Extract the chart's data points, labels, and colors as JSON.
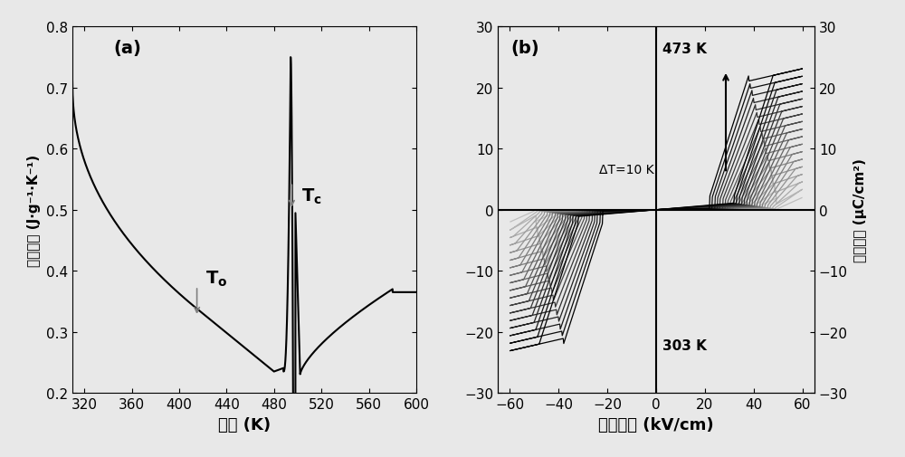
{
  "panel_a": {
    "title": "(a)",
    "xlabel": "温度 (K)",
    "ylabel": "比热系数 (J·g⁻¹·K⁻¹)",
    "xlim": [
      310,
      600
    ],
    "ylim": [
      0.2,
      0.8
    ],
    "xticks": [
      320,
      360,
      400,
      440,
      480,
      520,
      560,
      600
    ],
    "yticks": [
      0.2,
      0.3,
      0.4,
      0.5,
      0.6,
      0.7,
      0.8
    ],
    "To_x": 415,
    "To_y": 0.335,
    "Tc_x": 493,
    "Tc_y": 0.51,
    "peak_x": 497,
    "peak_y": 0.75,
    "min_x": 480,
    "min_y": 0.235
  },
  "panel_b": {
    "title": "(b)",
    "xlabel": "电场强度 (kV/cm)",
    "ylabel": "极化强度 (μC/cm²)",
    "xlim": [
      -65,
      65
    ],
    "ylim": [
      -30,
      30
    ],
    "xticks": [
      -60,
      -40,
      -20,
      0,
      20,
      40,
      60
    ],
    "yticks": [
      -30,
      -20,
      -10,
      0,
      10,
      20,
      30
    ],
    "T_start": 303,
    "T_end": 473,
    "dT": 10,
    "annotation_delta_T": "ΔT=10 K",
    "annotation_473K": "473 K",
    "annotation_303K": "303 K"
  },
  "background_color": "#e8e8e8",
  "line_color_dark": "#000000",
  "line_color_light": "#888888"
}
